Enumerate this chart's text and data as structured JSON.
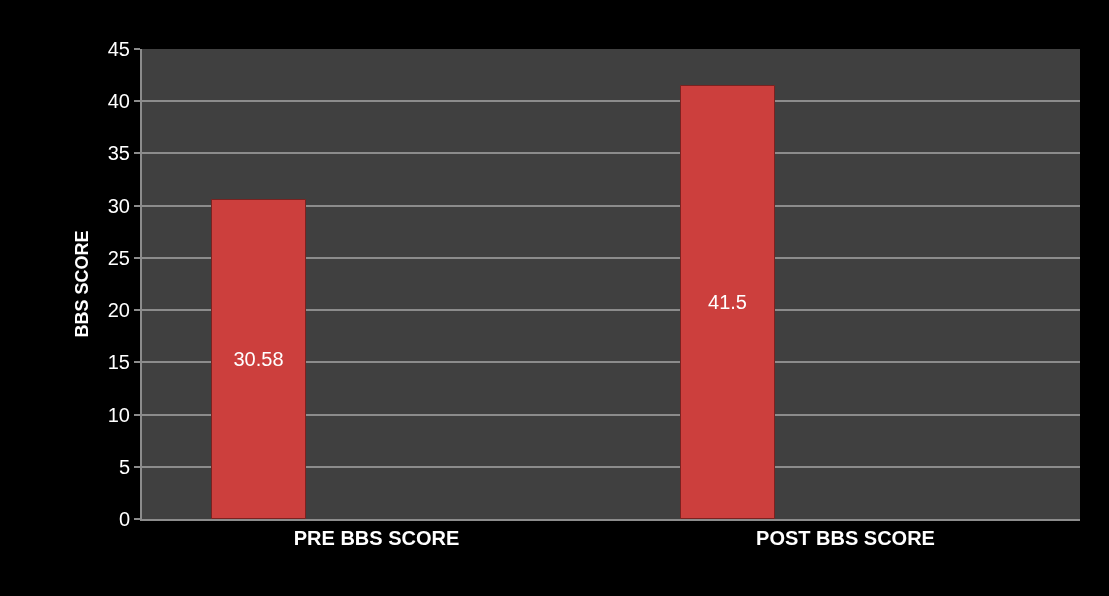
{
  "chart_data": {
    "type": "bar",
    "ylabel": "BBS SCORE",
    "categories": [
      "PRE BBS SCORE",
      "POST BBS SCORE"
    ],
    "values": [
      30.58,
      41.5
    ],
    "color": "#cc3f3d",
    "ylim": [
      0,
      45
    ],
    "yticks": [
      0,
      5,
      10,
      15,
      20,
      25,
      30,
      35,
      40,
      45
    ],
    "grid": "y",
    "data_labels": true
  }
}
